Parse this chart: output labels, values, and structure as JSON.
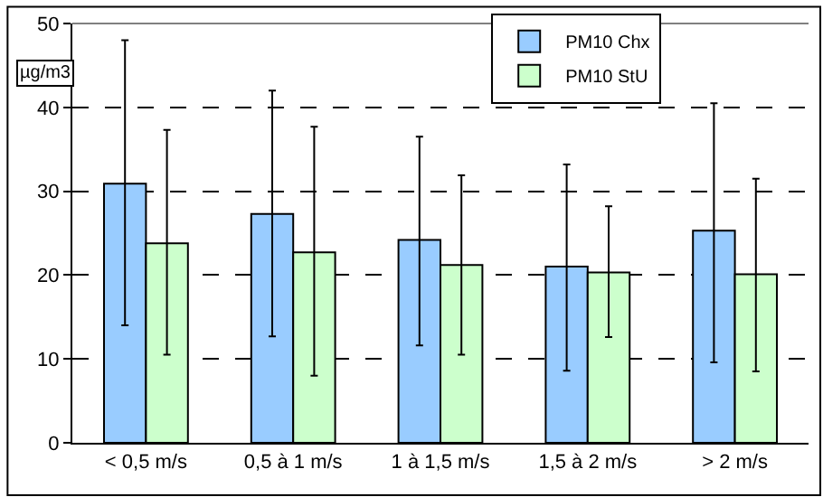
{
  "chart_data": {
    "type": "bar",
    "categories": [
      "< 0,5 m/s",
      "0,5 à 1 m/s",
      "1 à 1,5 m/s",
      "1,5 à 2 m/s",
      "> 2 m/s"
    ],
    "series": [
      {
        "name": "PM10 Chx",
        "color": "#99ccff",
        "values": [
          30.9,
          27.3,
          24.2,
          21.0,
          25.3
        ],
        "errors": [
          [
            14,
            48
          ],
          [
            12.7,
            42
          ],
          [
            11.6,
            36.5
          ],
          [
            8.6,
            33.2
          ],
          [
            9.6,
            40.5
          ]
        ]
      },
      {
        "name": "PM10 StU",
        "color": "#ccffcc",
        "values": [
          23.8,
          22.7,
          21.2,
          20.3,
          20.1
        ],
        "errors": [
          [
            10.5,
            37.3
          ],
          [
            8,
            37.7
          ],
          [
            10.5,
            31.9
          ],
          [
            12.6,
            28.2
          ],
          [
            8.5,
            31.5
          ]
        ]
      }
    ],
    "ylim": [
      0,
      50
    ],
    "yticks": [
      0,
      10,
      20,
      30,
      40,
      50
    ],
    "grid": "y",
    "line_style": "dashed",
    "legend": "top right",
    "annotations": [
      "µg/m3"
    ]
  }
}
